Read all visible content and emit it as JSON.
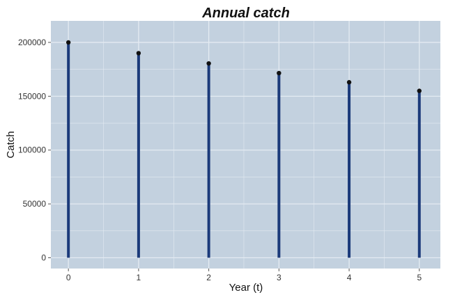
{
  "chart_data": {
    "type": "bar",
    "title": "Annual catch",
    "xlabel": "Year (t)",
    "ylabel": "Catch",
    "x": [
      0,
      1,
      2,
      3,
      4,
      5
    ],
    "values": [
      200000,
      190000,
      180500,
      171500,
      163000,
      155000
    ],
    "xlim": [
      -0.25,
      5.3
    ],
    "ylim": [
      -10000,
      220000
    ],
    "x_ticks": [
      0,
      1,
      2,
      3,
      4,
      5
    ],
    "y_ticks": [
      0,
      50000,
      100000,
      150000,
      200000
    ],
    "x_tick_labels": [
      "0",
      "1",
      "2",
      "3",
      "4",
      "5"
    ],
    "y_tick_labels": [
      "0",
      "50000",
      "100000",
      "150000",
      "200000"
    ],
    "grid": true,
    "panel_color": "#c3d1df",
    "grid_color": "#e4ebf2",
    "bar_color": "#1b3a7a",
    "point_color": "#111111"
  }
}
